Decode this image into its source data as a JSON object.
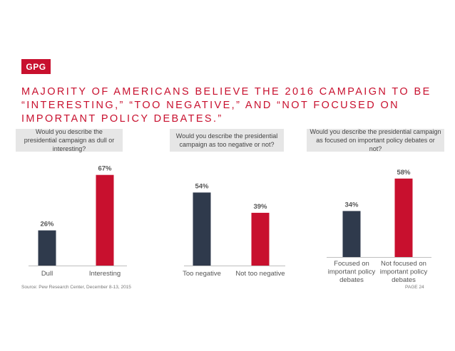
{
  "logo": "GPG",
  "headline_lines": [
    "MAJORITY OF AMERICANS BELIEVE THE 2016 CAMPAIGN TO BE",
    "“INTERESTING,” “TOO NEGATIVE,” AND “NOT FOCUSED ON",
    "IMPORTANT POLICY DEBATES.”"
  ],
  "questions": [
    "Would you describe the presidential campaign as dull or interesting?",
    "Would you describe the presidential campaign as too negative or not?",
    "Would you describe the presidential campaign as focused on important policy debates or not?"
  ],
  "colors": {
    "navy": "#2f3a4c",
    "red": "#c8102e",
    "axis": "#bfbfbf",
    "label": "#555555"
  },
  "chart_data": [
    {
      "type": "bar",
      "title": "Would you describe the presidential campaign as dull or interesting?",
      "categories": [
        "Dull",
        "Interesting"
      ],
      "values": [
        26,
        67
      ],
      "value_labels": [
        "26%",
        "67%"
      ],
      "ylim": [
        0,
        100
      ]
    },
    {
      "type": "bar",
      "title": "Would you describe the presidential campaign as too negative or not?",
      "categories": [
        "Too negative",
        "Not too negative"
      ],
      "values": [
        54,
        39
      ],
      "value_labels": [
        "54%",
        "39%"
      ],
      "ylim": [
        0,
        100
      ]
    },
    {
      "type": "bar",
      "title": "Would you describe the presidential campaign as focused on important policy debates or not?",
      "categories": [
        "Focused on important policy debates",
        "Not focused on important policy debates"
      ],
      "values": [
        34,
        58
      ],
      "value_labels": [
        "34%",
        "58%"
      ],
      "ylim": [
        0,
        100
      ]
    }
  ],
  "source": "Source: Pew Research Center, December 8-13, 2015",
  "page": "PAGE 24"
}
